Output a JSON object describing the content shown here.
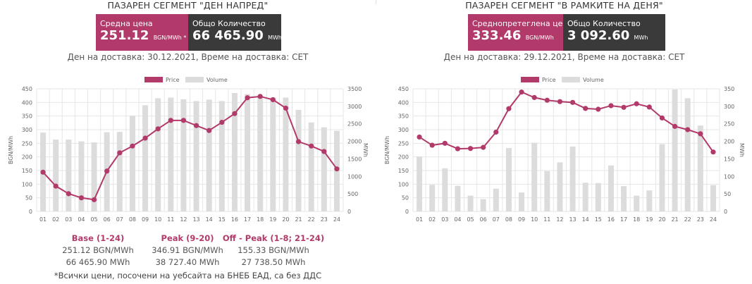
{
  "colors": {
    "price": "#b23a6a",
    "volume": "#dcdcdc",
    "grid": "#e6e6e6",
    "dark_box": "#3a3a3a"
  },
  "left": {
    "title": "ПАЗАРЕН СЕГМЕНТ \"ДЕН НАПРЕД\"",
    "box1": {
      "label": "Средна цена",
      "value": "251.12",
      "unit": "BGN/MWh *"
    },
    "box2": {
      "label": "Общо Количество",
      "value": "66 465.90",
      "unit": "MWh"
    },
    "delivery": "Ден на доставка: 30.12.2021, Време на доставка: CET",
    "stats": [
      {
        "label": "Base (1-24)",
        "price": "251.12 BGN/MWh",
        "volume": "66 465.90 MWh"
      },
      {
        "label": "Peak (9-20)",
        "price": "346.91 BGN/MWh",
        "volume": "38 727.40 MWh"
      },
      {
        "label": "Off - Peak (1-8; 21-24)",
        "price": "155.33 BGN/MWh",
        "volume": "27 738.50 MWh"
      }
    ],
    "note": "*Всички цени, посочени на уебсайта на БНЕБ ЕАД, са без ДДС"
  },
  "right": {
    "title": "ПАЗАРЕН СЕГМЕНТ \"В РАМКИТЕ НА ДЕНЯ\"",
    "box1": {
      "label": "Среднопретеглена цена",
      "value": "333.46",
      "unit": "BGN/MWh"
    },
    "box2": {
      "label": "Общо Количество",
      "value": "3 092.60",
      "unit": "MWh"
    },
    "delivery": "Ден на доставка: 29.12.2021, Време на доставка: CET"
  },
  "chart_data": [
    {
      "type": "bar+line",
      "categories": [
        "01",
        "02",
        "03",
        "04",
        "05",
        "06",
        "07",
        "08",
        "09",
        "10",
        "11",
        "12",
        "13",
        "14",
        "15",
        "16",
        "17",
        "18",
        "19",
        "20",
        "21",
        "22",
        "23",
        "24"
      ],
      "legend": [
        "Price",
        "Volume"
      ],
      "legend_position": "top-center",
      "ylabel": "BGN/MWh",
      "y2label": "MWh",
      "ylim": [
        0,
        450
      ],
      "y2lim": [
        0,
        3500
      ],
      "yticks": [
        0,
        50,
        100,
        150,
        200,
        250,
        300,
        350,
        400,
        450
      ],
      "y2ticks": [
        0,
        500,
        1000,
        1500,
        2000,
        2500,
        3000,
        3500
      ],
      "grid": true,
      "series": [
        {
          "name": "Price",
          "axis": "left",
          "kind": "line",
          "values": [
            144,
            93,
            65,
            50,
            43,
            148,
            215,
            240,
            269,
            303,
            334,
            334,
            315,
            297,
            327,
            359,
            417,
            422,
            410,
            379,
            256,
            240,
            220,
            156
          ]
        },
        {
          "name": "Volume",
          "axis": "right",
          "kind": "bar",
          "values": [
            2250,
            2050,
            2050,
            2000,
            1970,
            2260,
            2270,
            2730,
            3030,
            3230,
            3250,
            3200,
            3150,
            3190,
            3150,
            3380,
            3350,
            3290,
            3250,
            3250,
            2900,
            2540,
            2400,
            2300
          ]
        }
      ]
    },
    {
      "type": "bar+line",
      "categories": [
        "01",
        "02",
        "03",
        "04",
        "05",
        "06",
        "07",
        "08",
        "09",
        "10",
        "11",
        "12",
        "13",
        "14",
        "15",
        "16",
        "17",
        "18",
        "19",
        "20",
        "21",
        "22",
        "23",
        "24"
      ],
      "legend": [
        "Price",
        "Volume"
      ],
      "legend_position": "top-center",
      "ylabel": "BGN/MWh",
      "y2label": "MWh",
      "ylim": [
        0,
        450
      ],
      "y2lim": [
        0,
        350
      ],
      "yticks": [
        0,
        50,
        100,
        150,
        200,
        250,
        300,
        350,
        400,
        450
      ],
      "y2ticks": [
        0,
        50,
        100,
        150,
        200,
        250,
        300,
        350
      ],
      "grid": true,
      "series": [
        {
          "name": "Price",
          "axis": "left",
          "kind": "line",
          "values": [
            273,
            243,
            250,
            230,
            231,
            235,
            291,
            377,
            438,
            418,
            408,
            403,
            400,
            378,
            375,
            388,
            382,
            395,
            383,
            343,
            312,
            300,
            285,
            218
          ]
        },
        {
          "name": "Volume",
          "axis": "right",
          "kind": "bar",
          "values": [
            157,
            76,
            123,
            73,
            45,
            35,
            65,
            181,
            54,
            196,
            115,
            140,
            185,
            82,
            81,
            131,
            72,
            45,
            60,
            192,
            348,
            323,
            245,
            75
          ]
        }
      ]
    }
  ]
}
